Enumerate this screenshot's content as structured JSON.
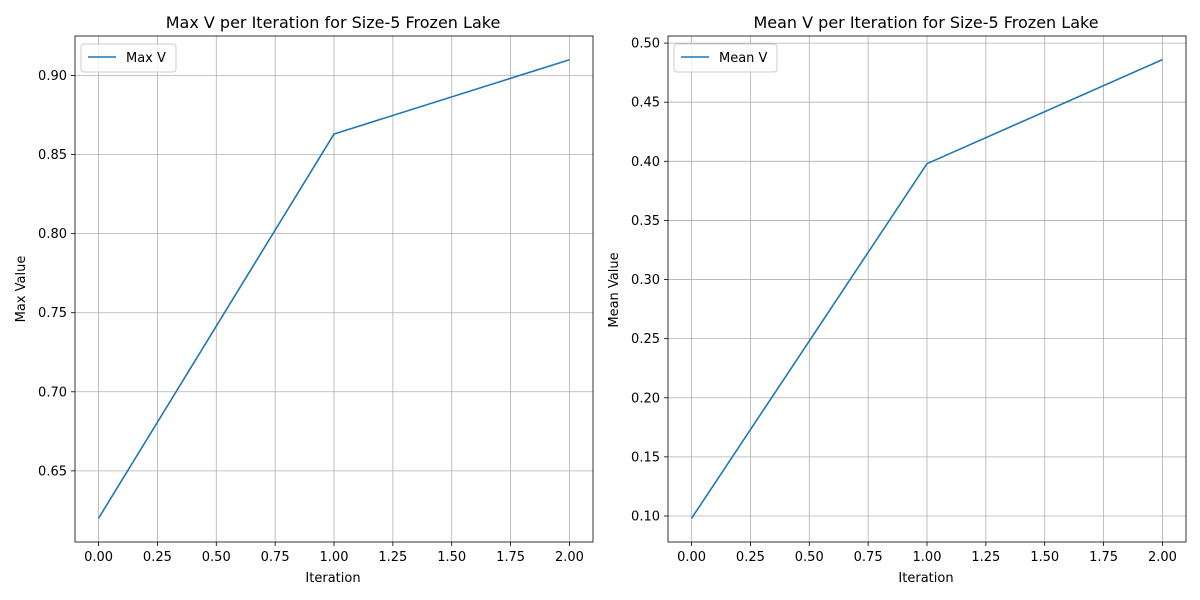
{
  "chart_data": [
    {
      "type": "line",
      "title": "Max V per Iteration for Size-5 Frozen Lake",
      "xlabel": "Iteration",
      "ylabel": "Max Value",
      "x": [
        0,
        1,
        2
      ],
      "series": [
        {
          "name": "Max V",
          "values": [
            0.62,
            0.863,
            0.91
          ],
          "color": "#1f77b4"
        }
      ],
      "xlim": [
        -0.1,
        2.1
      ],
      "ylim": [
        0.605,
        0.925
      ],
      "xticks": [
        0.0,
        0.25,
        0.5,
        0.75,
        1.0,
        1.25,
        1.5,
        1.75,
        2.0
      ],
      "xtick_labels": [
        "0.00",
        "0.25",
        "0.50",
        "0.75",
        "1.00",
        "1.25",
        "1.50",
        "1.75",
        "2.00"
      ],
      "yticks": [
        0.65,
        0.7,
        0.75,
        0.8,
        0.85,
        0.9
      ],
      "ytick_labels": [
        "0.65",
        "0.70",
        "0.75",
        "0.80",
        "0.85",
        "0.90"
      ],
      "grid": true,
      "legend": "top-left"
    },
    {
      "type": "line",
      "title": "Mean V per Iteration for Size-5 Frozen Lake",
      "xlabel": "Iteration",
      "ylabel": "Mean Value",
      "x": [
        0,
        1,
        2
      ],
      "series": [
        {
          "name": "Mean V",
          "values": [
            0.098,
            0.398,
            0.486
          ],
          "color": "#1f77b4"
        }
      ],
      "xlim": [
        -0.1,
        2.1
      ],
      "ylim": [
        0.078,
        0.506
      ],
      "xticks": [
        0.0,
        0.25,
        0.5,
        0.75,
        1.0,
        1.25,
        1.5,
        1.75,
        2.0
      ],
      "xtick_labels": [
        "0.00",
        "0.25",
        "0.50",
        "0.75",
        "1.00",
        "1.25",
        "1.50",
        "1.75",
        "2.00"
      ],
      "yticks": [
        0.1,
        0.15,
        0.2,
        0.25,
        0.3,
        0.35,
        0.4,
        0.45,
        0.5
      ],
      "ytick_labels": [
        "0.10",
        "0.15",
        "0.20",
        "0.25",
        "0.30",
        "0.35",
        "0.40",
        "0.45",
        "0.50"
      ],
      "grid": true,
      "legend": "top-left"
    }
  ]
}
